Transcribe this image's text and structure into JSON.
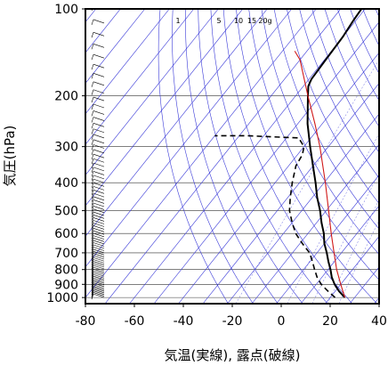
{
  "chart_data": {
    "type": "line",
    "title": "",
    "xlabel": "気温(実線), 露点(破線)",
    "ylabel": "気圧(hPa)",
    "x_ticks": [
      -80,
      -60,
      -40,
      -20,
      0,
      20,
      40
    ],
    "y_ticks": [
      100,
      200,
      300,
      400,
      500,
      600,
      700,
      800,
      900,
      1000
    ],
    "xlim_at_1000hPa": [
      -80,
      40
    ],
    "ylim": [
      1050,
      100
    ],
    "y_scale": "log",
    "grid": true,
    "mixing_ratio_labels": [
      "1",
      "5",
      "10",
      "15",
      "20g"
    ],
    "colors": {
      "grid": "#3a3ad8",
      "dry_adiabat": "#3a3ad8",
      "parcel": "#d01818",
      "temperature": "#000000",
      "dewpoint": "#000000"
    },
    "series": [
      {
        "kind": "temperature",
        "style": "solid",
        "points": [
          [
            1000,
            26
          ],
          [
            950,
            21.5
          ],
          [
            900,
            17.5
          ],
          [
            850,
            14
          ],
          [
            800,
            11
          ],
          [
            750,
            7.5
          ],
          [
            700,
            4
          ],
          [
            650,
            0
          ],
          [
            600,
            -3.5
          ],
          [
            550,
            -8
          ],
          [
            500,
            -12.5
          ],
          [
            450,
            -18
          ],
          [
            400,
            -23.5
          ],
          [
            350,
            -30
          ],
          [
            300,
            -37.5
          ],
          [
            250,
            -46
          ],
          [
            200,
            -55
          ],
          [
            185,
            -58
          ],
          [
            175,
            -59
          ],
          [
            150,
            -59.5
          ],
          [
            125,
            -60
          ],
          [
            110,
            -61
          ],
          [
            100,
            -61.5
          ]
        ]
      },
      {
        "kind": "parcel",
        "style": "solid",
        "points": [
          [
            1000,
            26
          ],
          [
            900,
            20
          ],
          [
            800,
            13.5
          ],
          [
            700,
            7
          ],
          [
            600,
            -0.5
          ],
          [
            500,
            -9
          ],
          [
            400,
            -19.5
          ],
          [
            300,
            -33.5
          ],
          [
            250,
            -43
          ],
          [
            200,
            -55
          ],
          [
            150,
            -70
          ],
          [
            140,
            -75
          ]
        ]
      },
      {
        "kind": "dewpoint",
        "style": "dashed",
        "points": [
          [
            1000,
            22
          ],
          [
            950,
            17
          ],
          [
            900,
            12
          ],
          [
            850,
            8
          ],
          [
            800,
            4.5
          ],
          [
            750,
            1
          ],
          [
            700,
            -3
          ],
          [
            650,
            -9
          ],
          [
            600,
            -15
          ],
          [
            550,
            -20
          ],
          [
            500,
            -25
          ],
          [
            450,
            -29
          ],
          [
            400,
            -33
          ],
          [
            350,
            -37
          ],
          [
            320,
            -38
          ],
          [
            300,
            -40
          ],
          [
            280,
            -45
          ],
          [
            275,
            -67
          ],
          [
            275,
            -80
          ]
        ]
      }
    ]
  }
}
